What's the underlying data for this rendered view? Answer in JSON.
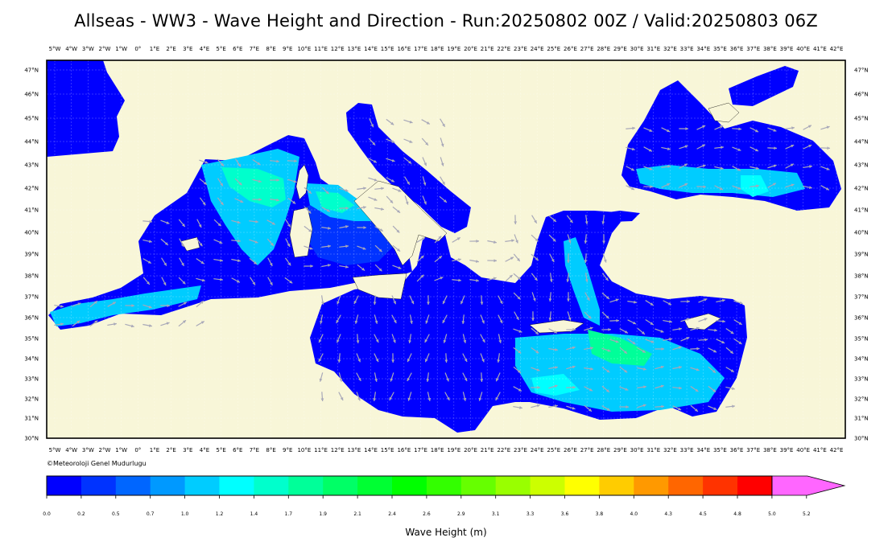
{
  "title": "Allseas - WW3 - Wave Height and Direction - Run:20250802 00Z / Valid:20250803 06Z",
  "credit": "©Meteoroloji Genel Mudurlugu",
  "colors": {
    "land": "#f8f6d8",
    "ocean_outside": "#0000ff",
    "frame": "#000000",
    "arrow": "#a8a8b8"
  },
  "map": {
    "lon_ticks": [
      "5°W",
      "4°W",
      "3°W",
      "2°W",
      "1°W",
      "0°",
      "1°E",
      "2°E",
      "3°E",
      "4°E",
      "5°E",
      "6°E",
      "7°E",
      "8°E",
      "9°E",
      "10°E",
      "11°E",
      "12°E",
      "13°E",
      "14°E",
      "15°E",
      "16°E",
      "17°E",
      "18°E",
      "19°E",
      "20°E",
      "21°E",
      "22°E",
      "23°E",
      "24°E",
      "25°E",
      "26°E",
      "27°E",
      "28°E",
      "29°E",
      "30°E",
      "31°E",
      "32°E",
      "33°E",
      "34°E",
      "35°E",
      "36°E",
      "37°E",
      "38°E",
      "39°E",
      "40°E",
      "41°E",
      "42°E"
    ],
    "lat_ticks": [
      "47°N",
      "46°N",
      "45°N",
      "44°N",
      "43°N",
      "42°N",
      "41°N",
      "40°N",
      "39°N",
      "38°N",
      "37°N",
      "36°N",
      "35°N",
      "34°N",
      "33°N",
      "32°N",
      "31°N",
      "30°N"
    ]
  },
  "colorbar": {
    "label": "Wave Height (m)",
    "ticks": [
      "0.0",
      "0.2",
      "0.5",
      "0.7",
      "1.0",
      "1.2",
      "1.4",
      "1.7",
      "1.9",
      "2.1",
      "2.4",
      "2.6",
      "2.9",
      "3.1",
      "3.3",
      "3.6",
      "3.8",
      "4.0",
      "4.3",
      "4.5",
      "4.8",
      "5.0",
      "5.2"
    ],
    "colors": [
      "#0000ff",
      "#0033ff",
      "#0066ff",
      "#0099ff",
      "#00ccff",
      "#00ffff",
      "#00ffcc",
      "#00ff99",
      "#00ff66",
      "#00ff33",
      "#00ff00",
      "#33ff00",
      "#66ff00",
      "#99ff00",
      "#ccff00",
      "#ffff00",
      "#ffcc00",
      "#ff9900",
      "#ff6600",
      "#ff3300",
      "#ff0000",
      "#ff66ff"
    ]
  }
}
